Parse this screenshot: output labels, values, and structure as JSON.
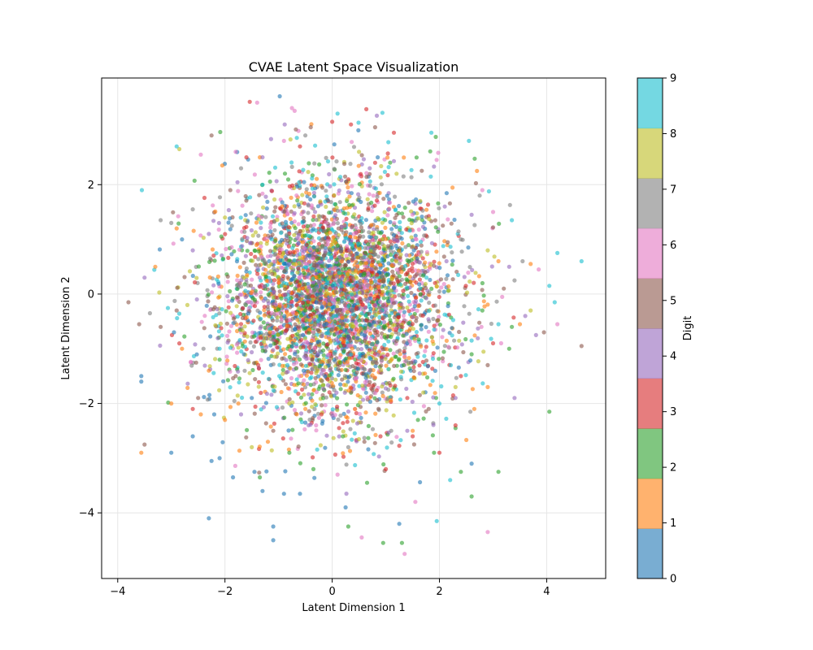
{
  "chart_data": {
    "type": "scatter",
    "title": "CVAE Latent Space Visualization",
    "xlabel": "Latent Dimension 1",
    "ylabel": "Latent Dimension 2",
    "xlim": [
      -4.3,
      5.1
    ],
    "ylim": [
      -5.2,
      3.95
    ],
    "xticks": [
      -4,
      -2,
      0,
      2,
      4
    ],
    "yticks": [
      -4,
      -2,
      0,
      2
    ],
    "grid": true,
    "marker_alpha": 0.6,
    "colorbar": {
      "label": "Digit",
      "ticks": [
        0,
        1,
        2,
        3,
        4,
        5,
        6,
        7,
        8,
        9
      ],
      "colors": [
        "#1f77b4",
        "#ff7f0e",
        "#2ca02c",
        "#d62728",
        "#9467bd",
        "#8c564b",
        "#e377c2",
        "#7f7f7f",
        "#bcbd22",
        "#17becf"
      ]
    },
    "series": [
      {
        "values": [
          [
            -3.56,
            -1.6
          ],
          [
            -3.56,
            -1.5
          ],
          [
            -2.3,
            -4.1
          ],
          [
            -2.25,
            -3.05
          ],
          [
            -1.1,
            -4.5
          ],
          [
            -1.1,
            -4.25
          ],
          [
            -1.3,
            -3.6
          ],
          [
            -0.6,
            -3.65
          ],
          [
            0.25,
            -3.9
          ],
          [
            -1.85,
            -3.35
          ],
          [
            -3.0,
            -2.9
          ],
          [
            -2.6,
            -2.6
          ],
          [
            1.25,
            -4.2
          ],
          [
            2.6,
            -3.1
          ],
          [
            -1.45,
            -3.25
          ],
          [
            -0.9,
            -3.65
          ],
          [
            -2.1,
            -3.0
          ],
          [
            -2.95,
            -0.7
          ],
          [
            -2.8,
            1.0
          ],
          [
            -1.5,
            -1.9
          ],
          [
            -0.5,
            -2.35
          ],
          [
            -2.2,
            -2.2
          ]
        ]
      },
      {
        "values": [
          [
            -3.56,
            -2.9
          ],
          [
            -3.0,
            -2.0
          ],
          [
            -2.8,
            -1.0
          ],
          [
            -2.45,
            -2.2
          ],
          [
            -1.75,
            -2.0
          ],
          [
            -2.0,
            -2.3
          ],
          [
            -1.2,
            -2.7
          ],
          [
            -2.05,
            2.35
          ],
          [
            -1.35,
            2.5
          ],
          [
            2.7,
            2.25
          ],
          [
            2.65,
            -2.1
          ],
          [
            3.7,
            0.55
          ],
          [
            3.5,
            -0.55
          ],
          [
            2.9,
            -1.7
          ],
          [
            -2.3,
            -1.4
          ],
          [
            -3.3,
            0.5
          ],
          [
            -2.9,
            1.2
          ],
          [
            1.5,
            -2.5
          ],
          [
            -0.5,
            -2.1
          ],
          [
            3.1,
            0.6
          ]
        ]
      },
      {
        "values": [
          [
            1.3,
            -4.55
          ],
          [
            0.95,
            -4.55
          ],
          [
            0.3,
            -4.25
          ],
          [
            2.6,
            -3.7
          ],
          [
            -1.35,
            -3.35
          ],
          [
            0.65,
            -3.45
          ],
          [
            1.9,
            -2.9
          ],
          [
            3.1,
            -3.25
          ],
          [
            2.4,
            -3.25
          ],
          [
            2.3,
            -2.45
          ],
          [
            4.05,
            -2.15
          ],
          [
            3.3,
            -1.0
          ],
          [
            3.35,
            -0.6
          ],
          [
            -0.35,
            -3.2
          ],
          [
            1.6,
            -2.3
          ],
          [
            -2.1,
            -1.2
          ],
          [
            0.2,
            -2.6
          ],
          [
            -0.8,
            -2.9
          ],
          [
            2.8,
            -0.3
          ],
          [
            2.6,
            -1.1
          ]
        ]
      },
      {
        "values": [
          [
            -2.6,
            -2.1
          ],
          [
            1.15,
            2.95
          ],
          [
            0.0,
            3.15
          ],
          [
            0.35,
            3.1
          ],
          [
            1.0,
            -3.2
          ],
          [
            1.5,
            -2.6
          ],
          [
            2.0,
            -2.9
          ],
          [
            -0.6,
            2.7
          ],
          [
            0.8,
            2.4
          ],
          [
            2.3,
            -2.4
          ],
          [
            3.0,
            -0.9
          ],
          [
            -1.6,
            2.5
          ],
          [
            0.9,
            -2.6
          ],
          [
            2.4,
            -1.5
          ],
          [
            -0.2,
            -2.2
          ],
          [
            1.4,
            -1.9
          ]
        ]
      },
      {
        "values": [
          [
            -3.5,
            0.3
          ],
          [
            -2.3,
            1.1
          ],
          [
            -1.3,
            2.5
          ],
          [
            3.4,
            -1.9
          ],
          [
            3.6,
            -0.4
          ],
          [
            3.3,
            0.5
          ],
          [
            3.8,
            -0.75
          ],
          [
            2.6,
            1.45
          ],
          [
            2.3,
            -1.9
          ],
          [
            -2.6,
            0.8
          ],
          [
            1.4,
            -2.5
          ],
          [
            2.1,
            1.6
          ],
          [
            -1.7,
            -2.2
          ],
          [
            0.7,
            2.3
          ]
        ]
      },
      {
        "values": [
          [
            -3.8,
            -0.15
          ],
          [
            -3.6,
            -0.55
          ],
          [
            -3.5,
            -2.75
          ],
          [
            -2.25,
            2.9
          ],
          [
            -0.4,
            3.05
          ],
          [
            0.8,
            3.05
          ],
          [
            4.65,
            -0.95
          ],
          [
            3.95,
            -0.7
          ],
          [
            -2.9,
            -0.3
          ],
          [
            -1.8,
            -1.5
          ],
          [
            -3.2,
            -0.6
          ],
          [
            -2.5,
            -1.9
          ],
          [
            2.9,
            -1.3
          ],
          [
            -1.9,
            1.9
          ],
          [
            1.8,
            -2.1
          ],
          [
            0.6,
            -2.7
          ],
          [
            3.2,
            0.1
          ],
          [
            -1.1,
            -2.5
          ]
        ]
      },
      {
        "values": [
          [
            -1.4,
            3.5
          ],
          [
            -0.75,
            3.4
          ],
          [
            -0.7,
            3.35
          ],
          [
            0.1,
            -3.3
          ],
          [
            1.55,
            -3.8
          ],
          [
            2.9,
            -4.35
          ],
          [
            1.35,
            -4.75
          ],
          [
            0.55,
            -4.45
          ],
          [
            2.8,
            1.9
          ],
          [
            3.0,
            1.5
          ],
          [
            3.85,
            0.45
          ],
          [
            4.2,
            -0.55
          ],
          [
            -2.45,
            2.55
          ],
          [
            -1.8,
            2.6
          ],
          [
            3.15,
            -0.9
          ],
          [
            -0.9,
            2.8
          ],
          [
            -0.3,
            -2.4
          ]
        ]
      },
      {
        "values": [
          [
            -3.2,
            1.35
          ],
          [
            -3.0,
            1.3
          ],
          [
            -2.6,
            1.55
          ],
          [
            2.75,
            1.8
          ],
          [
            3.55,
            0.6
          ],
          [
            3.4,
            0.25
          ],
          [
            -3.4,
            -0.35
          ],
          [
            -1.7,
            2.3
          ],
          [
            -2.4,
            -1.0
          ],
          [
            1.1,
            -2.5
          ],
          [
            0.3,
            -2.8
          ],
          [
            -0.5,
            2.9
          ],
          [
            2.4,
            1.0
          ]
        ]
      },
      {
        "values": [
          [
            -2.85,
            2.65
          ],
          [
            3.7,
            -0.3
          ],
          [
            -1.5,
            -2.8
          ],
          [
            2.3,
            -1.7
          ],
          [
            -2.0,
            1.4
          ],
          [
            0.5,
            2.6
          ],
          [
            1.7,
            -1.8
          ],
          [
            -0.8,
            -2.0
          ],
          [
            2.9,
            0.8
          ],
          [
            -2.7,
            -0.2
          ],
          [
            1.2,
            2.2
          ]
        ]
      },
      {
        "values": [
          [
            -3.55,
            1.9
          ],
          [
            -2.9,
            2.7
          ],
          [
            0.1,
            3.3
          ],
          [
            4.65,
            0.6
          ],
          [
            4.2,
            0.75
          ],
          [
            4.05,
            0.15
          ],
          [
            4.15,
            -0.15
          ],
          [
            1.95,
            -4.15
          ],
          [
            2.2,
            -3.4
          ],
          [
            2.55,
            2.8
          ],
          [
            3.35,
            1.35
          ],
          [
            2.35,
            0.35
          ],
          [
            1.85,
            2.95
          ],
          [
            2.0,
            -2.0
          ],
          [
            2.6,
            -0.85
          ],
          [
            -2.1,
            -1.0
          ],
          [
            -1.3,
            2.0
          ],
          [
            3.1,
            -0.55
          ]
        ]
      }
    ]
  }
}
